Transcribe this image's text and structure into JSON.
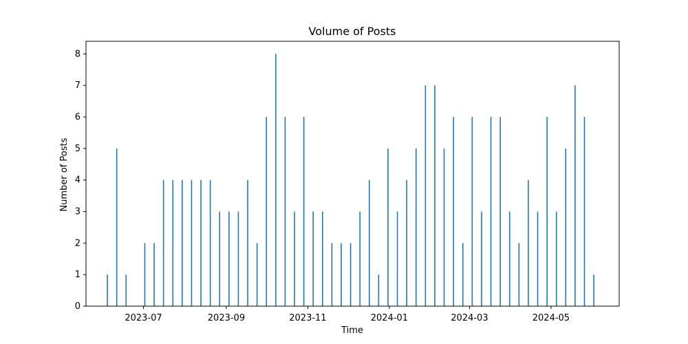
{
  "chart_data": {
    "type": "bar",
    "title": "Volume of Posts",
    "xlabel": "Time",
    "ylabel": "Number of Posts",
    "x_axis": {
      "type": "date",
      "range": [
        "2023-05-19",
        "2024-06-21"
      ],
      "tick_dates": [
        "2023-07-01",
        "2023-09-01",
        "2023-11-01",
        "2024-01-01",
        "2024-03-01",
        "2024-05-01"
      ],
      "tick_labels": [
        "2023-07",
        "2023-09",
        "2023-11",
        "2024-01",
        "2024-03",
        "2024-05"
      ]
    },
    "y_axis": {
      "range": [
        0,
        8.4
      ],
      "ticks": [
        0,
        1,
        2,
        3,
        4,
        5,
        6,
        7,
        8
      ]
    },
    "grid": false,
    "bar_color": "#1f77b4",
    "x": [
      "2023-06-04",
      "2023-06-11",
      "2023-06-18",
      "2023-07-02",
      "2023-07-09",
      "2023-07-16",
      "2023-07-23",
      "2023-07-30",
      "2023-08-06",
      "2023-08-13",
      "2023-08-20",
      "2023-08-27",
      "2023-09-03",
      "2023-09-10",
      "2023-09-17",
      "2023-09-24",
      "2023-10-01",
      "2023-10-08",
      "2023-10-15",
      "2023-10-22",
      "2023-10-29",
      "2023-11-05",
      "2023-11-12",
      "2023-11-19",
      "2023-11-26",
      "2023-12-03",
      "2023-12-10",
      "2023-12-17",
      "2023-12-24",
      "2023-12-31",
      "2024-01-07",
      "2024-01-14",
      "2024-01-21",
      "2024-01-28",
      "2024-02-04",
      "2024-02-11",
      "2024-02-18",
      "2024-02-25",
      "2024-03-03",
      "2024-03-10",
      "2024-03-17",
      "2024-03-24",
      "2024-03-31",
      "2024-04-07",
      "2024-04-14",
      "2024-04-21",
      "2024-04-28",
      "2024-05-05",
      "2024-05-12",
      "2024-05-19",
      "2024-05-26",
      "2024-06-02"
    ],
    "values": [
      1,
      5,
      1,
      2,
      2,
      4,
      4,
      4,
      4,
      4,
      4,
      3,
      3,
      3,
      4,
      2,
      6,
      8,
      6,
      3,
      6,
      3,
      3,
      2,
      2,
      2,
      3,
      4,
      1,
      5,
      3,
      4,
      5,
      7,
      7,
      5,
      6,
      2,
      6,
      3,
      6,
      6,
      3,
      2,
      4,
      3,
      6,
      3,
      5,
      7,
      6,
      1
    ]
  }
}
